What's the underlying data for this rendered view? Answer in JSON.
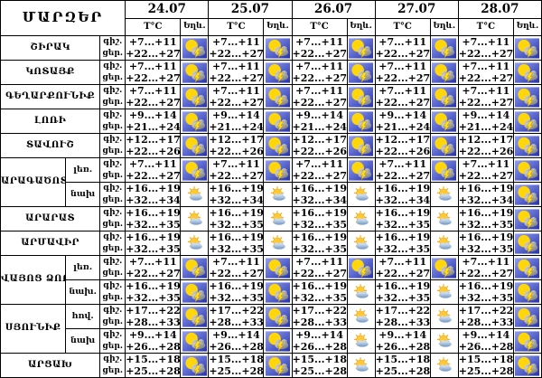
{
  "table": {
    "corner_label": "ՄԱՐԶԵՐ",
    "col_headers": {
      "temperature": "T°C",
      "phenomena": "Եղև."
    },
    "dates": [
      "24.07",
      "25.07",
      "26.07",
      "27.07",
      "28.07"
    ],
    "period_labels": {
      "night": "գիշ.",
      "day": "ցեր."
    },
    "icon_types": {
      "t": "sun-cloud-lightning-icon",
      "p": "sun-behind-cloud-icon"
    },
    "colors": {
      "grid": "#000000",
      "text": "#000000",
      "background": "#ffffff",
      "thunder_bg_light": "#93a0ef",
      "thunder_bg_dark": "#2531ad",
      "sun_yellow": "#ffd60a",
      "cloud_gray_light": "#e2e2e2",
      "cloud_gray_dark": "#6e6e6e",
      "lightning_yellow": "#ffe013",
      "lightning_edge": "#b8860b",
      "partly_sun_fill": "#ffc933",
      "partly_sun_edge": "#eda616",
      "partly_ray": "#f3ae1e",
      "partly_cloud_light": "#d8e6f4",
      "partly_cloud_dark": "#6f94c2"
    },
    "rows": [
      {
        "region": "ՇԻՐԱԿ",
        "zone": null,
        "night": "+7...+11",
        "day": "+22...+27",
        "icons": [
          "t",
          "t",
          "t",
          "t",
          "t"
        ]
      },
      {
        "region": "ԿՈՏԱՅՔ",
        "zone": null,
        "night": "+7...+11",
        "day": "+22...+27",
        "icons": [
          "t",
          "t",
          "t",
          "t",
          "t"
        ]
      },
      {
        "region": "ԳԵՂԱՐՔՈՒՆԻՔ",
        "zone": null,
        "night": "+7...+11",
        "day": "+22...+27",
        "icons": [
          "t",
          "t",
          "t",
          "t",
          "t"
        ]
      },
      {
        "region": "ԼՈՌԻ",
        "zone": null,
        "night": "+9...+14",
        "day": "+21...+24",
        "icons": [
          "t",
          "t",
          "t",
          "t",
          "t"
        ]
      },
      {
        "region": "ՏԱՎՈՒՇ",
        "zone": null,
        "night": "+12...+17",
        "day": "+22...+26",
        "icons": [
          "t",
          "t",
          "t",
          "t",
          "t"
        ]
      },
      {
        "region": "ԱՐԱԳԱԾՈՏՆ",
        "zone": "լեռ.",
        "night": "+7...+11",
        "day": "+22...+27",
        "icons": [
          "t",
          "t",
          "t",
          "t",
          "t"
        ]
      },
      {
        "region": "ԱՐԱԳԱԾՈՏՆ",
        "zone": "նախ",
        "night": "+16...+19",
        "day": "+32...+34",
        "icons": [
          "p",
          "p",
          "p",
          "p",
          "t"
        ]
      },
      {
        "region": "ԱՐԱՐԱՏ",
        "zone": null,
        "night": "+16...+19",
        "day": "+32...+35",
        "icons": [
          "p",
          "p",
          "p",
          "p",
          "t"
        ]
      },
      {
        "region": "ԱՐՄԱՎԻՐ",
        "zone": null,
        "night": "+16...+19",
        "day": "+32...+35",
        "icons": [
          "p",
          "p",
          "p",
          "p",
          "t"
        ]
      },
      {
        "region": "ՎԱՅՈՑ ՁՈՐ",
        "zone": "լեռ.",
        "night": "+7...+11",
        "day": "+22...+27",
        "icons": [
          "t",
          "t",
          "t",
          "t",
          "t"
        ]
      },
      {
        "region": "ՎԱՅՈՑ ՁՈՐ",
        "zone": "նախ.",
        "night": "+16...+19",
        "day": "+32...+35",
        "icons": [
          "t",
          "t",
          "p",
          "p",
          "t"
        ]
      },
      {
        "region": "ՍՅՈՒՆԻՔ",
        "zone": "հով.",
        "night": "+17...+22",
        "day": "+28...+33",
        "icons": [
          "t",
          "t",
          "p",
          "p",
          "t"
        ]
      },
      {
        "region": "ՍՅՈՒՆԻՔ",
        "zone": "նախ",
        "night": "+9...+14",
        "day": "+26...+28",
        "icons": [
          "t",
          "t",
          "p",
          "p",
          "t"
        ]
      },
      {
        "region": "ԱՐՑԱԽ",
        "zone": null,
        "night": "+15...+18",
        "day": "+25...+28",
        "icons": [
          "t",
          "t",
          "p",
          "p",
          "t"
        ]
      }
    ]
  }
}
